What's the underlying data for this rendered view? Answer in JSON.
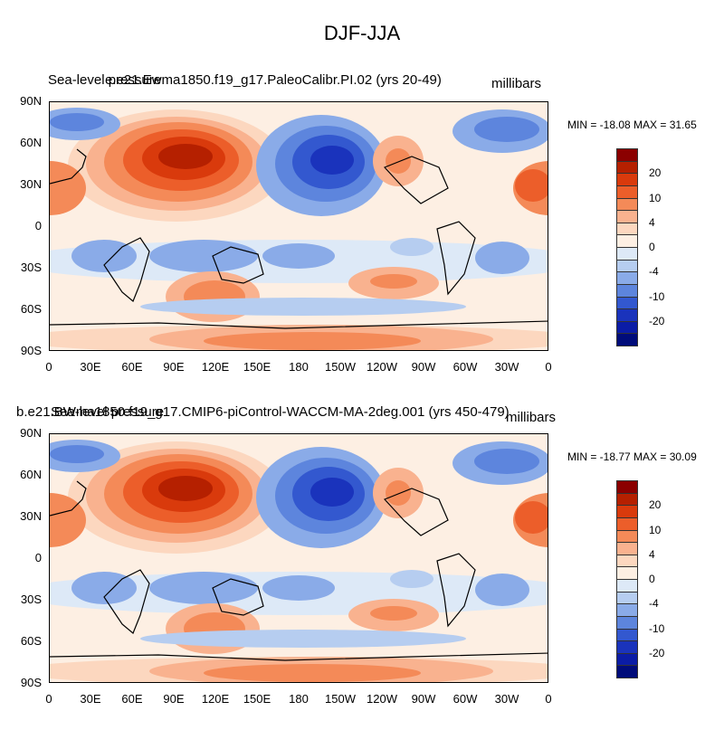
{
  "figure": {
    "title": "DJF-JJA",
    "variable_label": "Sea-level pressure",
    "units": "millibars",
    "x_ticks": [
      "0",
      "30E",
      "60E",
      "90E",
      "120E",
      "150E",
      "180",
      "150W",
      "120W",
      "90W",
      "60W",
      "30W",
      "0"
    ],
    "y_ticks": [
      "90N",
      "60N",
      "30N",
      "0",
      "30S",
      "60S",
      "90S"
    ],
    "colorbar_labels": [
      "20",
      "10",
      "4",
      "0",
      "-4",
      "-10",
      "-20"
    ],
    "colorbar_colors": [
      "#8b0000",
      "#b52000",
      "#d93a0c",
      "#ec5e2a",
      "#f48a58",
      "#f9b28f",
      "#fcd7bf",
      "#fdefe3",
      "#dde9f7",
      "#b6cdf0",
      "#8aabe8",
      "#5d85dd",
      "#3358cf",
      "#1a33bc",
      "#0b1ca6",
      "#000c7a"
    ]
  },
  "panels": [
    {
      "case": "e.e21.Ewma1850.f19_g17.PaleoCalibr.PI.02 (yrs 20-49)",
      "stats": "MIN = -18.08 MAX =  31.65"
    },
    {
      "case": "b.e21.BWma1850.f19_g17.CMIP6-piControl-WACCM-MA-2deg.001 (yrs 450-479)",
      "stats": "MIN = -18.77 MAX =  30.09"
    }
  ]
}
